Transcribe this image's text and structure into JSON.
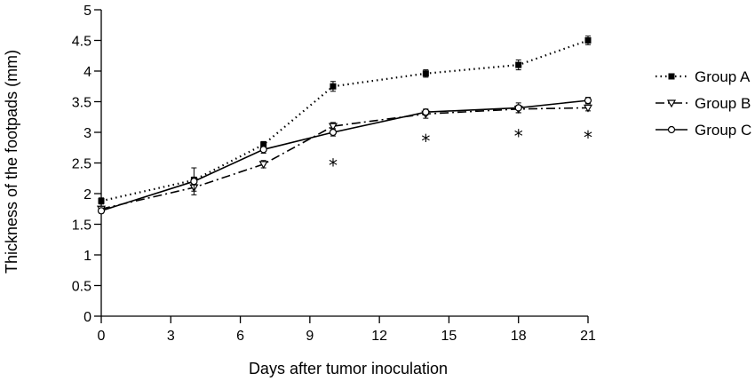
{
  "chart_data": {
    "type": "line",
    "xlabel": "Days after tumor inoculation",
    "ylabel": "Thickness of the footpads (mm)",
    "xlim": [
      0,
      21
    ],
    "ylim": [
      0,
      5
    ],
    "x_ticks": [
      "0",
      "3",
      "6",
      "9",
      "12",
      "15",
      "18",
      "21"
    ],
    "y_ticks": [
      "0",
      "0.5",
      "1",
      "1.5",
      "2",
      "2.5",
      "3",
      "3.5",
      "4",
      "4.5",
      "5"
    ],
    "grid": false,
    "legend_position": "right",
    "series": [
      {
        "name": "Group A",
        "line_style": "dotted",
        "marker": "filled-square",
        "x": [
          0,
          4,
          7,
          10,
          14,
          18,
          21
        ],
        "y": [
          1.88,
          2.22,
          2.8,
          3.75,
          3.96,
          4.1,
          4.5
        ],
        "err": [
          0.05,
          0.05,
          0.05,
          0.08,
          0.06,
          0.08,
          0.07
        ]
      },
      {
        "name": "Group B",
        "line_style": "dash-dot",
        "marker": "open-triangle-down",
        "x": [
          0,
          4,
          7,
          10,
          14,
          18,
          21
        ],
        "y": [
          1.75,
          2.1,
          2.48,
          3.1,
          3.3,
          3.38,
          3.4
        ],
        "err": [
          0.04,
          0.06,
          0.06,
          0.06,
          0.07,
          0.06,
          0.05
        ]
      },
      {
        "name": "Group C",
        "line_style": "solid",
        "marker": "open-circle",
        "x": [
          0,
          4,
          7,
          10,
          14,
          18,
          21
        ],
        "y": [
          1.72,
          2.2,
          2.72,
          3.0,
          3.33,
          3.4,
          3.52
        ],
        "err": [
          0.04,
          0.22,
          0.06,
          0.06,
          0.05,
          0.08,
          0.05
        ]
      }
    ],
    "annotations": [
      {
        "text": "*",
        "x": 10,
        "y": 2.5
      },
      {
        "text": "*",
        "x": 14,
        "y": 2.9
      },
      {
        "text": "*",
        "x": 18,
        "y": 2.98
      },
      {
        "text": "*",
        "x": 21,
        "y": 2.96
      }
    ]
  }
}
